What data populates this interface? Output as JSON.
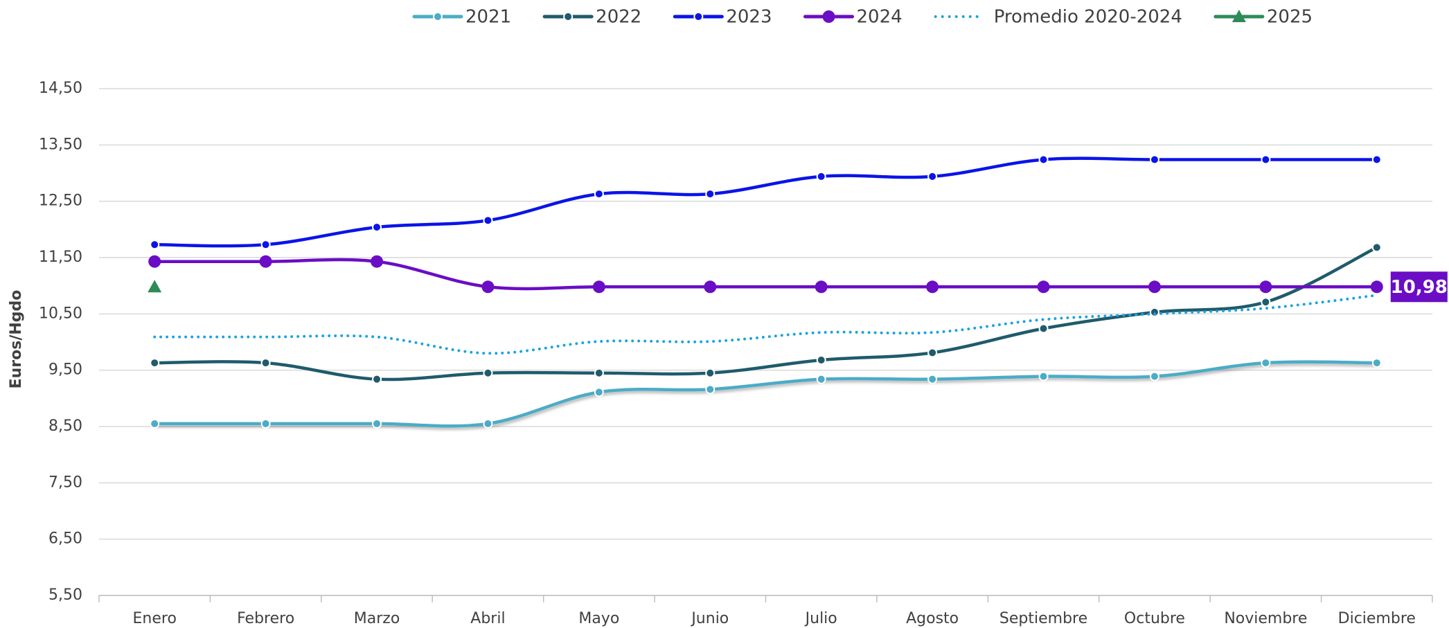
{
  "chart_data": {
    "type": "line",
    "y_label": "Euros/Hgdo",
    "categories": [
      "Enero",
      "Febrero",
      "Marzo",
      "Abril",
      "Mayo",
      "Junio",
      "Julio",
      "Agosto",
      "Septiembre",
      "Octubre",
      "Noviembre",
      "Diciembre"
    ],
    "ylim": [
      5.5,
      14.5
    ],
    "yticks": [
      {
        "value": 5.5,
        "label": "5,50"
      },
      {
        "value": 6.5,
        "label": "6,50"
      },
      {
        "value": 7.5,
        "label": "7,50"
      },
      {
        "value": 8.5,
        "label": "8,50"
      },
      {
        "value": 9.5,
        "label": "9,50"
      },
      {
        "value": 10.5,
        "label": "10,50"
      },
      {
        "value": 11.5,
        "label": "11,50"
      },
      {
        "value": 12.5,
        "label": "12,50"
      },
      {
        "value": 13.5,
        "label": "13,50"
      },
      {
        "value": 14.5,
        "label": "14,50"
      }
    ],
    "grid": true,
    "legend": "top",
    "series": [
      {
        "name": "2021",
        "color": "#4bacc6",
        "marker": "dot",
        "dash": "solid",
        "values": [
          8.55,
          8.55,
          8.55,
          8.55,
          9.11,
          9.16,
          9.34,
          9.34,
          9.39,
          9.39,
          9.63,
          9.63
        ]
      },
      {
        "name": "2022",
        "color": "#1f5b6b",
        "marker": "dot",
        "dash": "solid",
        "values": [
          9.63,
          9.63,
          9.34,
          9.45,
          9.45,
          9.45,
          9.68,
          9.81,
          10.24,
          10.53,
          10.71,
          11.68
        ]
      },
      {
        "name": "2023",
        "color": "#0a14e8",
        "marker": "dot",
        "dash": "solid",
        "values": [
          11.73,
          11.73,
          12.04,
          12.16,
          12.63,
          12.63,
          12.94,
          12.94,
          13.24,
          13.24,
          13.24,
          13.24
        ]
      },
      {
        "name": "2024",
        "color": "#6a0dc4",
        "marker": "circle",
        "dash": "solid",
        "values": [
          11.43,
          11.43,
          11.43,
          10.98,
          10.98,
          10.98,
          10.98,
          10.98,
          10.98,
          10.98,
          10.98,
          10.98
        ],
        "value_labels": [
          null,
          null,
          null,
          null,
          null,
          null,
          null,
          null,
          null,
          null,
          null,
          "10,98"
        ]
      },
      {
        "name": "Promedio 2020-2024",
        "color": "#1aa3e0",
        "marker": "none",
        "dash": "dotted",
        "values": [
          10.09,
          10.09,
          10.09,
          9.8,
          10.01,
          10.01,
          10.17,
          10.17,
          10.4,
          10.5,
          10.6,
          10.83
        ]
      },
      {
        "name": "2025",
        "color": "#2e8b57",
        "marker": "triangle",
        "dash": "solid",
        "values": [
          10.98,
          null,
          null,
          null,
          null,
          null,
          null,
          null,
          null,
          null,
          null,
          null
        ]
      }
    ]
  }
}
